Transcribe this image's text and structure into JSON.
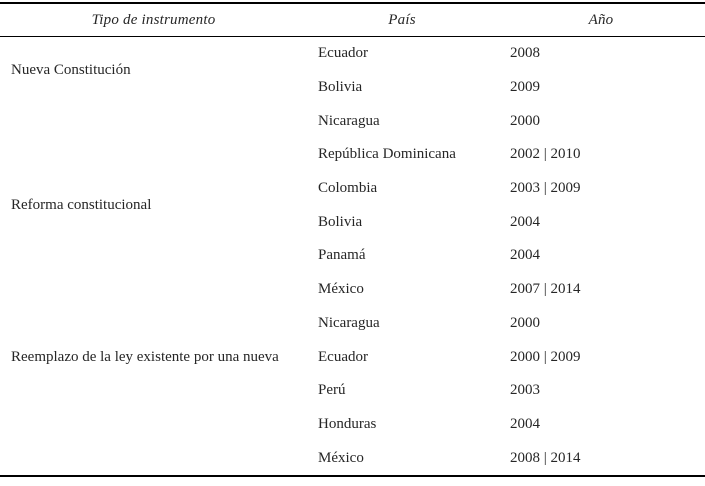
{
  "table": {
    "headers": [
      "Tipo de instrumento",
      "País",
      "Año"
    ],
    "groups": [
      {
        "label": "Nueva Constitución",
        "rows": [
          {
            "country": "Ecuador",
            "years": "2008"
          },
          {
            "country": "Bolivia",
            "years": "2009"
          }
        ]
      },
      {
        "label": "Reforma constitucional",
        "rows": [
          {
            "country": "Nicaragua",
            "years": "2000"
          },
          {
            "country": "República Dominicana",
            "years": "2002 | 2010"
          },
          {
            "country": "Colombia",
            "years": "2003 | 2009"
          },
          {
            "country": "Bolivia",
            "years": "2004"
          },
          {
            "country": "Panamá",
            "years": "2004"
          },
          {
            "country": "México",
            "years": "2007 | 2014"
          }
        ]
      },
      {
        "label": "Reemplazo de la ley existente por una nueva",
        "rows": [
          {
            "country": "Nicaragua",
            "years": "2000"
          },
          {
            "country": "Ecuador",
            "years": "2000 | 2009"
          },
          {
            "country": "Perú",
            "years": "2003"
          },
          {
            "country": "Honduras",
            "years": "2004"
          },
          {
            "country": "México",
            "years": "2008 | 2014"
          }
        ]
      }
    ]
  },
  "colors": {
    "text": "#262626",
    "rule": "#000000",
    "background": "#ffffff"
  }
}
